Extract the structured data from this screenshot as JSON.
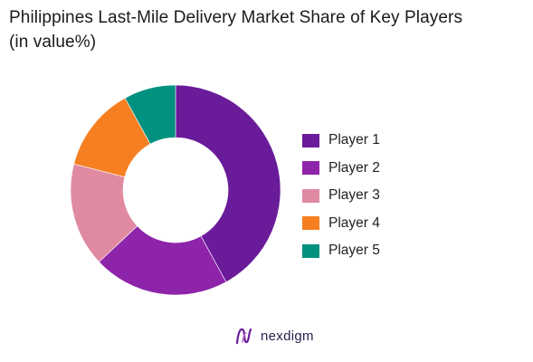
{
  "chart_data": {
    "type": "pie",
    "title_lines": [
      "Philippines Last-Mile Delivery Market Share of Key Players",
      "(in value%)"
    ],
    "categories": [
      "Player 1",
      "Player 2",
      "Player 3",
      "Player 4",
      "Player 5"
    ],
    "values": [
      42,
      21,
      16,
      13,
      8
    ],
    "colors": [
      "#6a1b9a",
      "#8e24aa",
      "#e08aa2",
      "#f57f21",
      "#00917f"
    ],
    "donut": true,
    "legend_position": "right"
  },
  "brand": {
    "name": "nexdigm",
    "logo_icon": "nexdigm-wave-icon",
    "accent_color": "#6a1b9a"
  }
}
